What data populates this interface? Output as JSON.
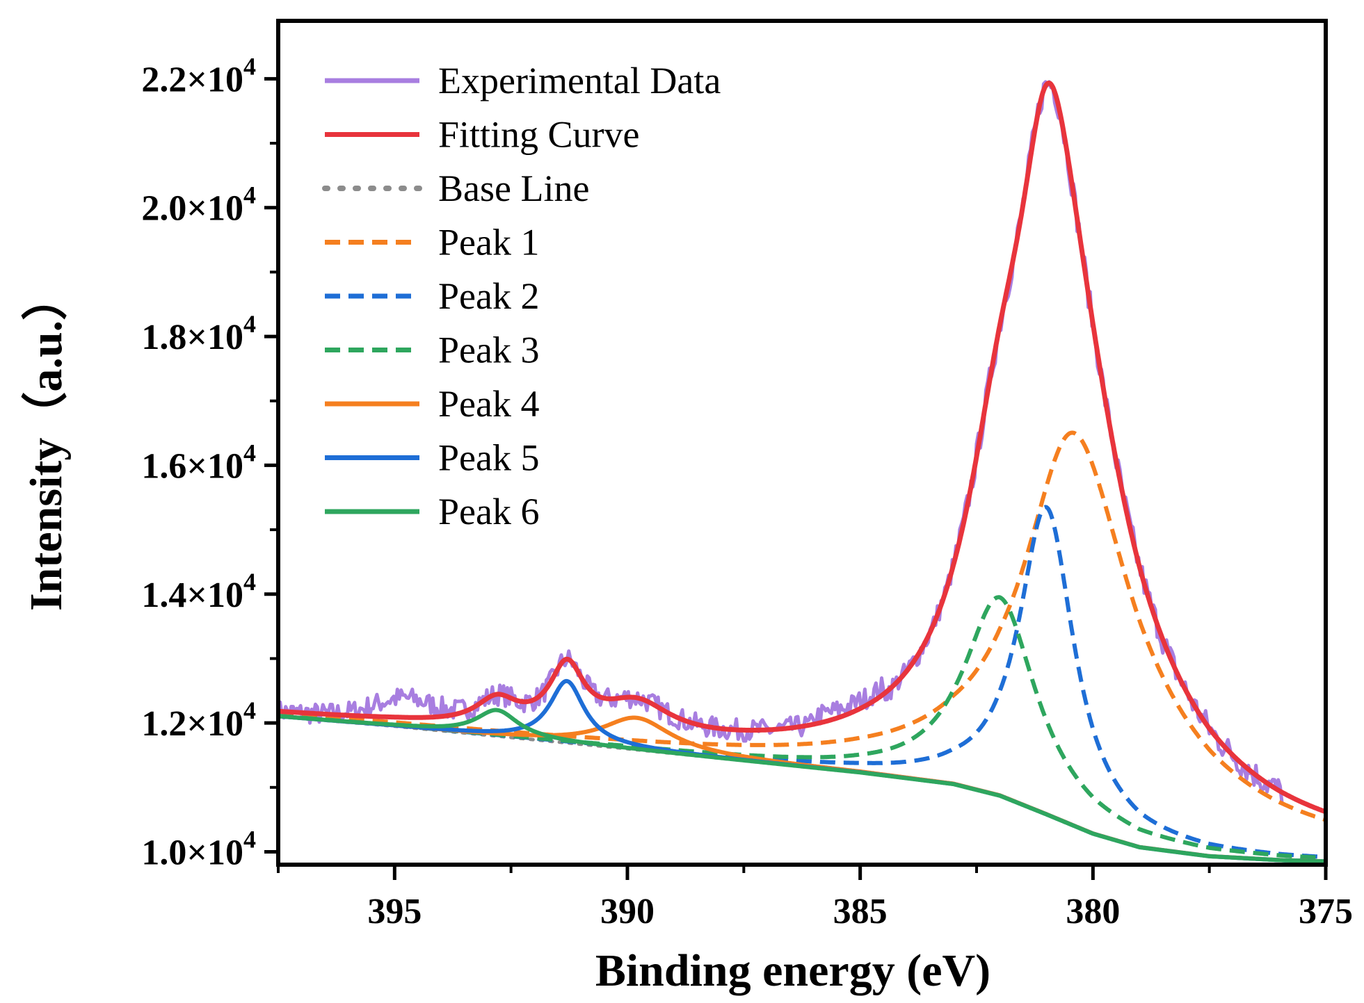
{
  "chart_data": {
    "type": "line",
    "title": "",
    "xlabel": "Binding energy (eV)",
    "ylabel": "Intensity（a.u.）",
    "xlim": [
      397.5,
      375
    ],
    "ylim": [
      9800,
      22900
    ],
    "x_ticks": [
      395,
      390,
      385,
      380,
      375
    ],
    "x_tick_labels": [
      "395",
      "390",
      "385",
      "380",
      "375"
    ],
    "y_ticks": [
      10000,
      12000,
      14000,
      16000,
      18000,
      20000,
      22000
    ],
    "y_tick_labels": [
      {
        "mant": "1.0×10",
        "exp": "4"
      },
      {
        "mant": "1.2×10",
        "exp": "4"
      },
      {
        "mant": "1.4×10",
        "exp": "4"
      },
      {
        "mant": "1.6×10",
        "exp": "4"
      },
      {
        "mant": "1.8×10",
        "exp": "4"
      },
      {
        "mant": "2.0×10",
        "exp": "4"
      },
      {
        "mant": "2.2×10",
        "exp": "4"
      }
    ],
    "legend_position": "top-left",
    "series": [
      {
        "name": "Experimental Data",
        "color": "#a87ee0",
        "style": "solid"
      },
      {
        "name": "Fitting Curve",
        "color": "#e8343c",
        "style": "solid"
      },
      {
        "name": "Base Line",
        "color": "#8c8c8c",
        "style": "dotted",
        "points": [
          [
            397.5,
            12100
          ],
          [
            395,
            11950
          ],
          [
            390,
            11600
          ],
          [
            385,
            11230
          ],
          [
            383,
            11050
          ],
          [
            382,
            10870
          ],
          [
            381,
            10580
          ],
          [
            380,
            10280
          ],
          [
            379,
            10070
          ],
          [
            377.5,
            9930
          ],
          [
            376,
            9870
          ],
          [
            375,
            9850
          ]
        ]
      },
      {
        "name": "Peak 1",
        "color": "#f57f1f",
        "style": "dashed",
        "center": 380.4,
        "amplitude": 16500,
        "hwhm": 1.3,
        "plateau": 2.7
      },
      {
        "name": "Peak 2",
        "color": "#1e6ed6",
        "style": "dashed",
        "center": 381.0,
        "amplitude": 15350,
        "hwhm": 0.72
      },
      {
        "name": "Peak 3",
        "color": "#2ea65e",
        "style": "dashed",
        "center": 382.0,
        "amplitude": 13950,
        "hwhm": 0.95
      },
      {
        "name": "Peak 4",
        "color": "#f57f1f",
        "style": "solid",
        "center": 389.8,
        "amplitude": 12080,
        "hwhm": 0.9
      },
      {
        "name": "Peak 5",
        "color": "#1e6ed6",
        "style": "solid",
        "center": 391.3,
        "amplitude": 12650,
        "hwhm": 0.45
      },
      {
        "name": "Peak 6",
        "color": "#2ea65e",
        "style": "solid",
        "center": 392.8,
        "amplitude": 12200,
        "hwhm": 0.55
      }
    ]
  }
}
